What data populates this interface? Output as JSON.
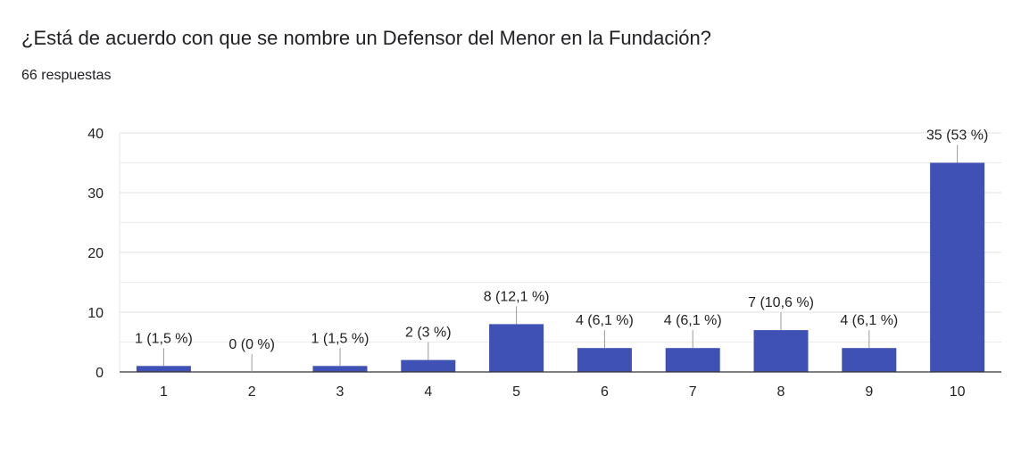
{
  "header": {
    "title": "¿Está de acuerdo con que se nombre un Defensor del Menor en la Fundación?",
    "response_count": "66 respuestas"
  },
  "colors": {
    "bar": "#3f51b5",
    "gridline": "#e6e6e6",
    "axis": "#333333",
    "leader": "#999999"
  },
  "chart_data": {
    "type": "bar",
    "title": "¿Está de acuerdo con que se nombre un Defensor del Menor en la Fundación?",
    "xlabel": "",
    "ylabel": "",
    "ylim": [
      0,
      40
    ],
    "yticks": [
      0,
      10,
      20,
      30,
      40
    ],
    "grid": true,
    "categories": [
      "1",
      "2",
      "3",
      "4",
      "5",
      "6",
      "7",
      "8",
      "9",
      "10"
    ],
    "values": [
      1,
      0,
      1,
      2,
      8,
      4,
      4,
      7,
      4,
      35
    ],
    "labels": [
      "1 (1,5 %)",
      "0 (0 %)",
      "1 (1,5 %)",
      "2 (3 %)",
      "8 (12,1 %)",
      "4 (6,1 %)",
      "4 (6,1 %)",
      "7 (10,6 %)",
      "4 (6,1 %)",
      "35 (53 %)"
    ]
  }
}
